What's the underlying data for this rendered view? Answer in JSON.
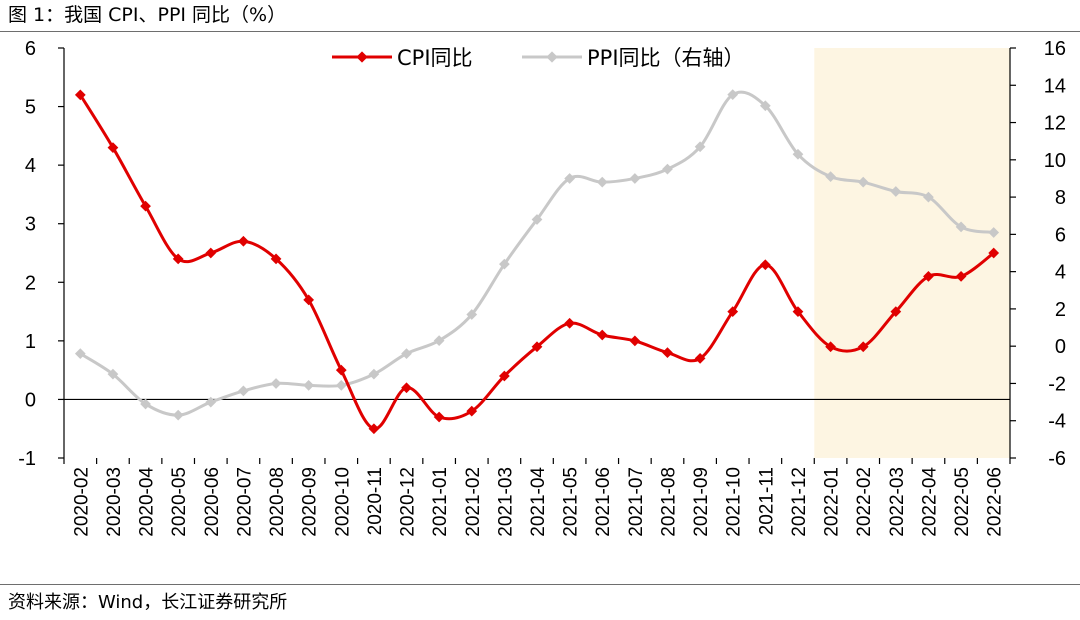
{
  "figure": {
    "title": "图  1：我国 CPI、PPI 同比（%）",
    "source": "资料来源：Wind，长江证券研究所"
  },
  "chart_data": {
    "type": "line",
    "categories": [
      "2020-02",
      "2020-03",
      "2020-04",
      "2020-05",
      "2020-06",
      "2020-07",
      "2020-08",
      "2020-09",
      "2020-10",
      "2020-11",
      "2020-12",
      "2021-01",
      "2021-02",
      "2021-03",
      "2021-04",
      "2021-05",
      "2021-06",
      "2021-07",
      "2021-08",
      "2021-09",
      "2021-10",
      "2021-11",
      "2021-12",
      "2022-01",
      "2022-02",
      "2022-03",
      "2022-04",
      "2022-05",
      "2022-06"
    ],
    "series": [
      {
        "name": "CPI同比",
        "axis": "left",
        "color": "#e00000",
        "values": [
          5.2,
          4.3,
          3.3,
          2.4,
          2.5,
          2.7,
          2.4,
          1.7,
          0.5,
          -0.5,
          0.2,
          -0.3,
          -0.2,
          0.4,
          0.9,
          1.3,
          1.1,
          1.0,
          0.8,
          0.7,
          1.5,
          2.3,
          1.5,
          0.9,
          0.9,
          1.5,
          2.1,
          2.1,
          2.5
        ]
      },
      {
        "name": "PPI同比（右轴）",
        "axis": "right",
        "color": "#c8c8c8",
        "values": [
          -0.4,
          -1.5,
          -3.1,
          -3.7,
          -3.0,
          -2.4,
          -2.0,
          -2.1,
          -2.1,
          -1.5,
          -0.4,
          0.3,
          1.7,
          4.4,
          6.8,
          9.0,
          8.8,
          9.0,
          9.5,
          10.7,
          13.5,
          12.9,
          10.3,
          9.1,
          8.8,
          8.3,
          8.0,
          6.4,
          6.1
        ]
      }
    ],
    "y_left": {
      "min": -1,
      "max": 6,
      "ticks": [
        "6",
        "5",
        "4",
        "3",
        "2",
        "1",
        "0",
        "-1"
      ]
    },
    "y_right": {
      "min": -6,
      "max": 16,
      "ticks": [
        "16",
        "14",
        "12",
        "10",
        "8",
        "6",
        "4",
        "2",
        "0",
        "-2",
        "-4",
        "-6"
      ]
    },
    "highlight": {
      "from": "2022-01",
      "to": "2022-06",
      "color": "#fdf5e2"
    },
    "legend_position": "top-center",
    "grid": false
  }
}
